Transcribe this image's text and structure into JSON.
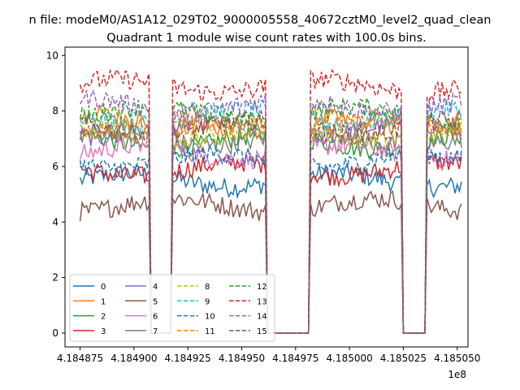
{
  "chart_data": {
    "type": "line",
    "title_top": "n file: modeM0/AS1A12_029T02_9000005558_40672cztM0_level2_quad_clean",
    "title": "Quadrant 1 module wise count rates with 100.0s bins.",
    "xlabel": "",
    "ylabel": "",
    "x_offset_label": "1e8",
    "xlim": [
      418486800,
      418505500
    ],
    "ylim": [
      -0.5,
      10.3
    ],
    "x_ticks": [
      418487500,
      418490000,
      418492500,
      418495000,
      418497500,
      418500000,
      418502500,
      418505000
    ],
    "x_tick_labels": [
      "4.184875",
      "4.184900",
      "4.184925",
      "4.184950",
      "4.184975",
      "4.185000",
      "4.185025",
      "4.185050"
    ],
    "y_ticks": [
      0,
      2,
      4,
      6,
      8,
      10
    ],
    "y_tick_labels": [
      "0",
      "2",
      "4",
      "6",
      "8",
      "10"
    ],
    "grid": false,
    "legend_position": "lower-left",
    "legend_columns": 4,
    "bin_seconds": 100,
    "segments": [
      {
        "start": 418487500,
        "end": 418490700
      },
      {
        "start": 418491800,
        "end": 418496100
      },
      {
        "start": 418498200,
        "end": 418502400
      },
      {
        "start": 418503600,
        "end": 418505200
      }
    ],
    "gap_value": 0,
    "series": [
      {
        "name": "0",
        "style": "solid",
        "color": "#1f77b4",
        "level": 5.5
      },
      {
        "name": "1",
        "style": "solid",
        "color": "#ff7f0e",
        "level": 7.6
      },
      {
        "name": "2",
        "style": "solid",
        "color": "#2ca02c",
        "level": 6.9
      },
      {
        "name": "3",
        "style": "solid",
        "color": "#d62728",
        "level": 5.9
      },
      {
        "name": "4",
        "style": "solid",
        "color": "#9467bd",
        "level": 7.3
      },
      {
        "name": "5",
        "style": "solid",
        "color": "#8c564b",
        "level": 4.6
      },
      {
        "name": "6",
        "style": "solid",
        "color": "#e377c2",
        "level": 6.5
      },
      {
        "name": "7",
        "style": "solid",
        "color": "#7f7f7f",
        "level": 7.0
      },
      {
        "name": "8",
        "style": "dashed",
        "color": "#bcbd22",
        "level": 7.2
      },
      {
        "name": "9",
        "style": "dashed",
        "color": "#17becf",
        "level": 7.8
      },
      {
        "name": "10",
        "style": "dashed",
        "color": "#1f77b4",
        "level": 6.2
      },
      {
        "name": "11",
        "style": "dashed",
        "color": "#ff7f0e",
        "level": 7.5
      },
      {
        "name": "12",
        "style": "dashed",
        "color": "#2ca02c",
        "level": 7.9
      },
      {
        "name": "13",
        "style": "dashed",
        "color": "#d62728",
        "level": 8.9
      },
      {
        "name": "14",
        "style": "dashed",
        "color": "#9467bd",
        "level": 8.2
      },
      {
        "name": "15",
        "style": "dashed",
        "color": "#8c564b",
        "level": 7.4
      }
    ]
  }
}
